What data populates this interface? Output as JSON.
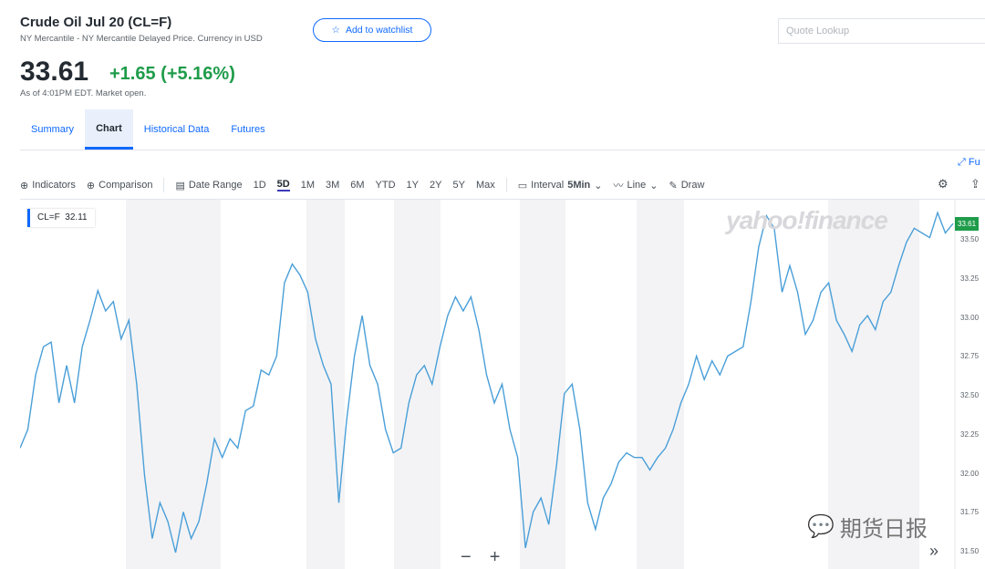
{
  "header": {
    "title": "Crude Oil Jul 20 (CL=F)",
    "subtitle": "NY Mercantile - NY Mercantile Delayed Price. Currency in USD",
    "watchlist_label": "Add to watchlist",
    "quote_placeholder": "Quote Lookup",
    "price": "33.61",
    "change": "+1.65 (+5.16%)",
    "as_of": "As of 4:01PM EDT. Market open."
  },
  "tabs": [
    {
      "label": "Summary"
    },
    {
      "label": "Chart",
      "active": true
    },
    {
      "label": "Historical Data"
    },
    {
      "label": "Futures"
    }
  ],
  "fullscreen_label": "Fu",
  "toolbar": {
    "indicators": "Indicators",
    "comparison": "Comparison",
    "date_range": "Date Range",
    "ranges": [
      "1D",
      "5D",
      "1M",
      "3M",
      "6M",
      "YTD",
      "1Y",
      "2Y",
      "5Y",
      "Max"
    ],
    "selected_range": "5D",
    "interval": "Interval",
    "interval_value": "5Min",
    "chart_type": "Line",
    "draw": "Draw"
  },
  "legend": {
    "symbol": "CL=F",
    "value": "32.11"
  },
  "logo": "yahoo!finance",
  "watermark": "期货日报",
  "controls": {
    "zoom_out": "−",
    "zoom_in": "+",
    "more": "»"
  },
  "colors": {
    "line": "#4a9fd8",
    "accent": "#0f69ff",
    "positive": "#1f9c4a"
  },
  "chart_data": {
    "type": "line",
    "series": [
      {
        "name": "CL=F",
        "values": [
          32.17,
          32.29,
          32.64,
          32.82,
          32.85,
          32.46,
          32.7,
          32.46,
          32.82,
          32.99,
          33.18,
          33.05,
          33.11,
          32.87,
          32.99,
          32.58,
          32.0,
          31.59,
          31.82,
          31.7,
          31.5,
          31.76,
          31.59,
          31.7,
          31.94,
          32.23,
          32.11,
          32.23,
          32.17,
          32.41,
          32.44,
          32.67,
          32.64,
          32.76,
          33.23,
          33.35,
          33.28,
          33.17,
          32.87,
          32.7,
          32.58,
          31.82,
          32.35,
          32.76,
          33.02,
          32.7,
          32.58,
          32.29,
          32.14,
          32.17,
          32.46,
          32.64,
          32.7,
          32.58,
          32.82,
          33.02,
          33.14,
          33.05,
          33.14,
          32.93,
          32.64,
          32.46,
          32.58,
          32.29,
          32.11,
          31.53,
          31.76,
          31.85,
          31.68,
          32.06,
          32.52,
          32.58,
          32.29,
          31.82,
          31.65,
          31.85,
          31.94,
          32.08,
          32.14,
          32.11,
          32.11,
          32.03,
          32.11,
          32.17,
          32.29,
          32.46,
          32.58,
          32.76,
          32.61,
          32.73,
          32.64,
          32.76,
          32.79,
          32.82,
          33.11,
          33.46,
          33.66,
          33.58,
          33.17,
          33.34,
          33.17,
          32.9,
          32.99,
          33.17,
          33.23,
          32.99,
          32.9,
          32.79,
          32.96,
          33.02,
          32.93,
          33.11,
          33.17,
          33.34,
          33.49,
          33.58,
          33.55,
          33.52,
          33.68,
          33.55,
          33.61
        ]
      }
    ],
    "yticks": [
      "33.50",
      "33.25",
      "33.00",
      "32.75",
      "32.50",
      "32.25",
      "32.00",
      "31.75",
      "31.50"
    ],
    "last_price_label": "33.61",
    "ylim": [
      31.45,
      33.7
    ],
    "grid": false
  }
}
